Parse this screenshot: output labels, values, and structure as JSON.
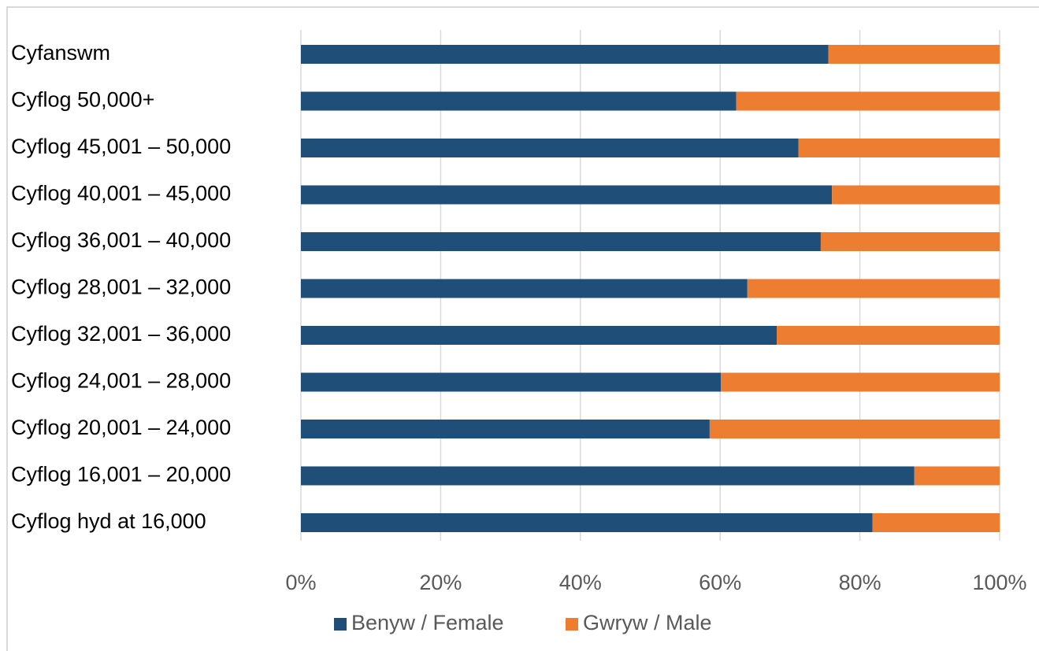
{
  "chart_data": {
    "type": "bar",
    "orientation": "horizontal",
    "stacked": "percent",
    "categories": [
      "Cyfanswm",
      "Cyflog 50,000+",
      "Cyflog 45,001 – 50,000",
      "Cyflog 40,001 – 45,000",
      "Cyflog 36,001 – 40,000",
      "Cyflog 28,001 – 32,000",
      "Cyflog 32,001 – 36,000",
      "Cyflog 24,001 – 28,000",
      "Cyflog 20,001 – 24,000",
      "Cyflog 16,001 – 20,000",
      "Cyflog hyd at 16,000"
    ],
    "series": [
      {
        "name": "Benyw / Female",
        "color": "#1f4e79",
        "values": [
          75.5,
          62.3,
          71.2,
          76.0,
          74.4,
          63.9,
          68.1,
          60.1,
          58.5,
          87.8,
          81.8
        ]
      },
      {
        "name": "Gwryw / Male",
        "color": "#ed7d31",
        "values": [
          24.5,
          37.7,
          28.8,
          24.0,
          25.6,
          36.1,
          31.9,
          39.9,
          41.5,
          12.2,
          18.2
        ]
      }
    ],
    "x_ticks": [
      "0%",
      "20%",
      "40%",
      "60%",
      "80%",
      "100%"
    ],
    "xlim": [
      0,
      100
    ],
    "grid": true,
    "legend_position": "bottom",
    "title": "",
    "xlabel": "",
    "ylabel": ""
  }
}
